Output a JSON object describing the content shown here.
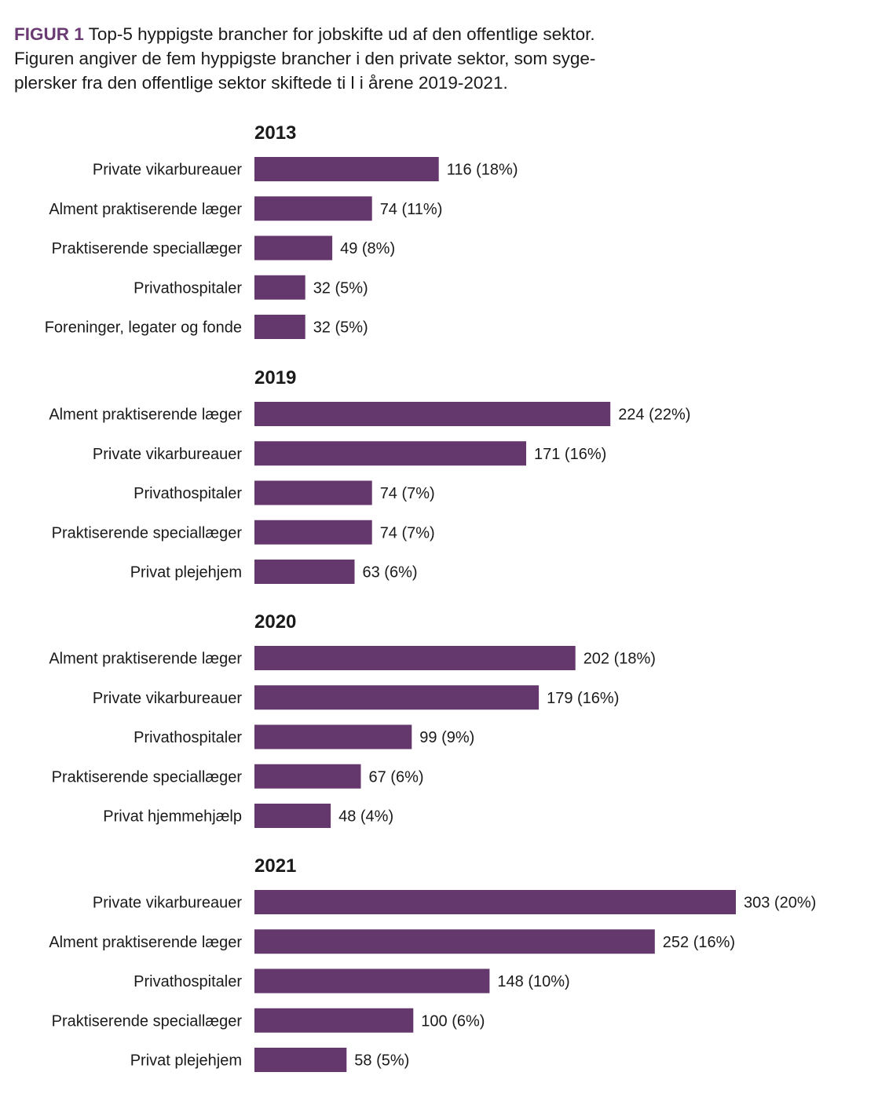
{
  "caption": {
    "figure_label": "FIGUR 1",
    "line1": "Top-5 hyppigste brancher for jobskifte ud af den offentlige sektor.",
    "line2": "Figuren angiver de fem hyppigste brancher i den private sektor, som syge-",
    "line3": "plersker fra den offentlige sektor skiftede ti l i årene 2019-2021."
  },
  "colors": {
    "bar": "#65386d",
    "accent": "#6a3a73",
    "text": "#1a1a1a"
  },
  "chart_data": [
    {
      "type": "bar",
      "orientation": "horizontal",
      "title": "2013",
      "categories": [
        "Private vikarbureauer",
        "Alment praktiserende læger",
        "Praktiserende speciallæger",
        "Privathospitaler",
        "Foreninger, legater og fonde"
      ],
      "values": [
        116,
        74,
        49,
        32,
        32
      ],
      "labels": [
        "116 (18%)",
        "74 (11%)",
        "49 (8%)",
        "32 (5%)",
        "32 (5%)"
      ],
      "xlim": [
        0,
        303
      ],
      "grid": false
    },
    {
      "type": "bar",
      "orientation": "horizontal",
      "title": "2019",
      "categories": [
        "Alment praktiserende læger",
        "Private vikarbureauer",
        "Privathospitaler",
        "Praktiserende speciallæger",
        "Privat plejehjem"
      ],
      "values": [
        224,
        171,
        74,
        74,
        63
      ],
      "labels": [
        "224 (22%)",
        "171 (16%)",
        "74 (7%)",
        "74 (7%)",
        "63 (6%)"
      ],
      "xlim": [
        0,
        303
      ],
      "grid": false
    },
    {
      "type": "bar",
      "orientation": "horizontal",
      "title": "2020",
      "categories": [
        "Alment praktiserende læger",
        "Private vikarbureauer",
        "Privathospitaler",
        "Praktiserende speciallæger",
        "Privat hjemmehjælp"
      ],
      "values": [
        202,
        179,
        99,
        67,
        48
      ],
      "labels": [
        "202 (18%)",
        "179 (16%)",
        "99 (9%)",
        "67 (6%)",
        "48 (4%)"
      ],
      "xlim": [
        0,
        303
      ],
      "grid": false
    },
    {
      "type": "bar",
      "orientation": "horizontal",
      "title": "2021",
      "categories": [
        "Private vikarbureauer",
        "Alment praktiserende læger",
        "Privathospitaler",
        "Praktiserende speciallæger",
        "Privat plejehjem"
      ],
      "values": [
        303,
        252,
        148,
        100,
        58
      ],
      "labels": [
        "303 (20%)",
        "252 (16%)",
        "148 (10%)",
        "100 (6%)",
        "58 (5%)"
      ],
      "xlim": [
        0,
        303
      ],
      "grid": false
    }
  ]
}
